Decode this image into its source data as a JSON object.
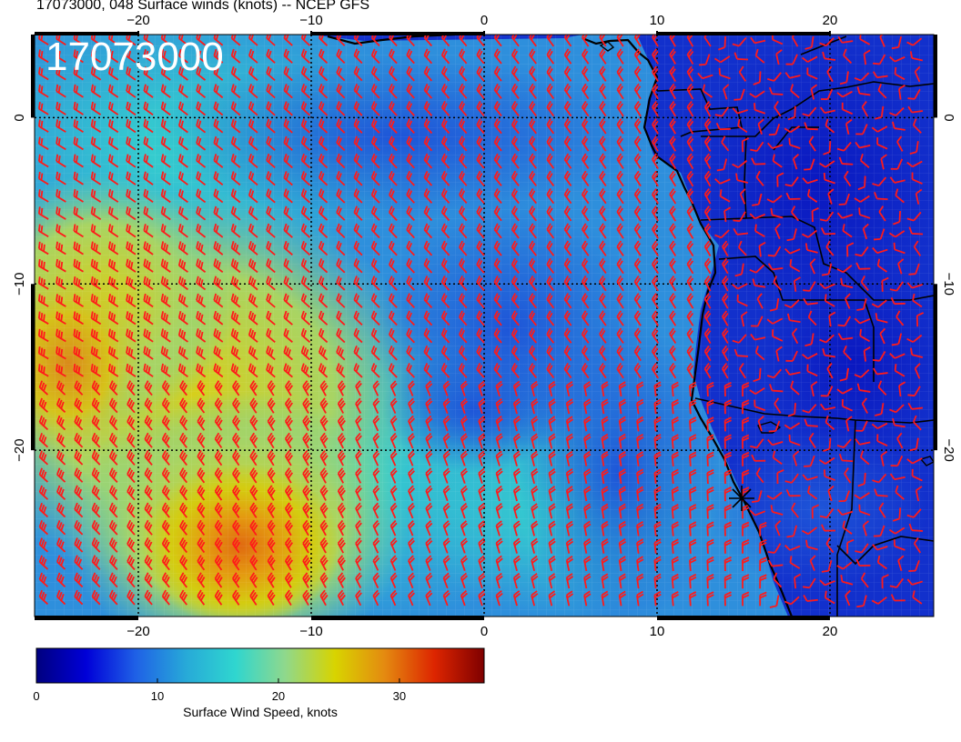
{
  "title": "17073000, 048 Surface winds (knots) -- NCEP GFS",
  "timestamp_overlay": "17073000",
  "map": {
    "lon_range": [
      -26,
      26
    ],
    "lat_range": [
      -30,
      5
    ],
    "lon_ticks": [
      {
        "value": -20,
        "label": "−20"
      },
      {
        "value": -10,
        "label": "−10"
      },
      {
        "value": 0,
        "label": "0"
      },
      {
        "value": 10,
        "label": "10"
      },
      {
        "value": 20,
        "label": "20"
      }
    ],
    "lat_ticks": [
      {
        "value": 0,
        "label": "0"
      },
      {
        "value": -10,
        "label": "−10"
      },
      {
        "value": -20,
        "label": "−20"
      }
    ],
    "gridlines": "dotted",
    "wind_barb_color": "#ff1a1a",
    "coastline_color": "#000000",
    "storm_marker_icon": "asterisk-marker-icon"
  },
  "colorbar": {
    "label": "Surface Wind Speed, knots",
    "range": [
      0,
      37
    ],
    "ticks": [
      {
        "value": 0,
        "label": "0"
      },
      {
        "value": 10,
        "label": "10"
      },
      {
        "value": 20,
        "label": "20"
      },
      {
        "value": 30,
        "label": "30"
      }
    ],
    "colormap": [
      "#00007f",
      "#0000d8",
      "#1f61e6",
      "#27a9d8",
      "#2fd6cf",
      "#8fd88c",
      "#d8d400",
      "#e48a10",
      "#dd2500",
      "#7f0000"
    ]
  }
}
